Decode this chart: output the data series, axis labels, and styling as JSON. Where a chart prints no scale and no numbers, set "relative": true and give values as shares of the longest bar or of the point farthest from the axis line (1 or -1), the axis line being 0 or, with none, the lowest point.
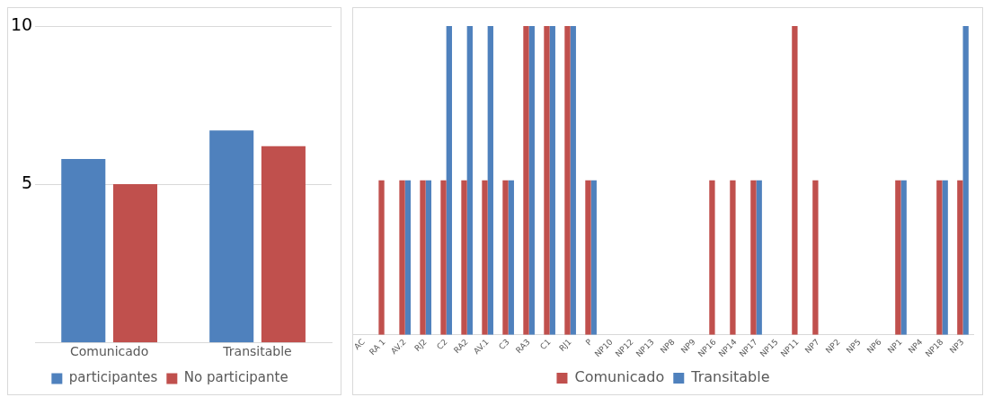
{
  "chart_data": [
    {
      "type": "bar",
      "categories": [
        "Comunicado",
        "Transitable"
      ],
      "series": [
        {
          "name": "participantes",
          "color": "#4f81bd",
          "values": [
            5.8,
            6.7
          ]
        },
        {
          "name": "No participante",
          "color": "#c0504d",
          "values": [
            5.0,
            6.2
          ]
        }
      ],
      "ylim": [
        0,
        10
      ],
      "yticks": [
        5,
        10
      ],
      "grid": "y",
      "legend": "bottom"
    },
    {
      "type": "bar",
      "relative": true,
      "categories": [
        "AC",
        "RA 1",
        "AV.2",
        "RJ2",
        "C2",
        "RA2",
        "AV.1",
        "C3",
        "RA3",
        "C1",
        "RJ1",
        "P",
        "NP10",
        "NP12",
        "NP13",
        "NP8",
        "NP9",
        "NP16",
        "NP14",
        "NP17",
        "NP15",
        "NP11",
        "NP7",
        "NP2",
        "NP5",
        "NP6",
        "NP1",
        "NP4",
        "NP18",
        "NP3"
      ],
      "series": [
        {
          "name": "Comunicado",
          "color": "#c0504d",
          "values": [
            0,
            0.5,
            0.5,
            0.5,
            0.5,
            0.5,
            0.5,
            0.5,
            1,
            1,
            1,
            0.5,
            0,
            0,
            0,
            0,
            0,
            0.5,
            0.5,
            0.5,
            0,
            1,
            0.5,
            0,
            0,
            0,
            0.5,
            0,
            0.5,
            0.5
          ]
        },
        {
          "name": "Transitable",
          "color": "#4f81bd",
          "values": [
            0,
            0,
            0.5,
            0.5,
            1,
            1,
            1,
            0.5,
            1,
            1,
            1,
            0.5,
            0,
            0,
            0,
            0,
            0,
            0,
            0,
            0.5,
            0,
            0,
            0,
            0,
            0,
            0,
            0.5,
            0,
            0.5,
            1
          ]
        }
      ],
      "legend": "bottom"
    }
  ]
}
